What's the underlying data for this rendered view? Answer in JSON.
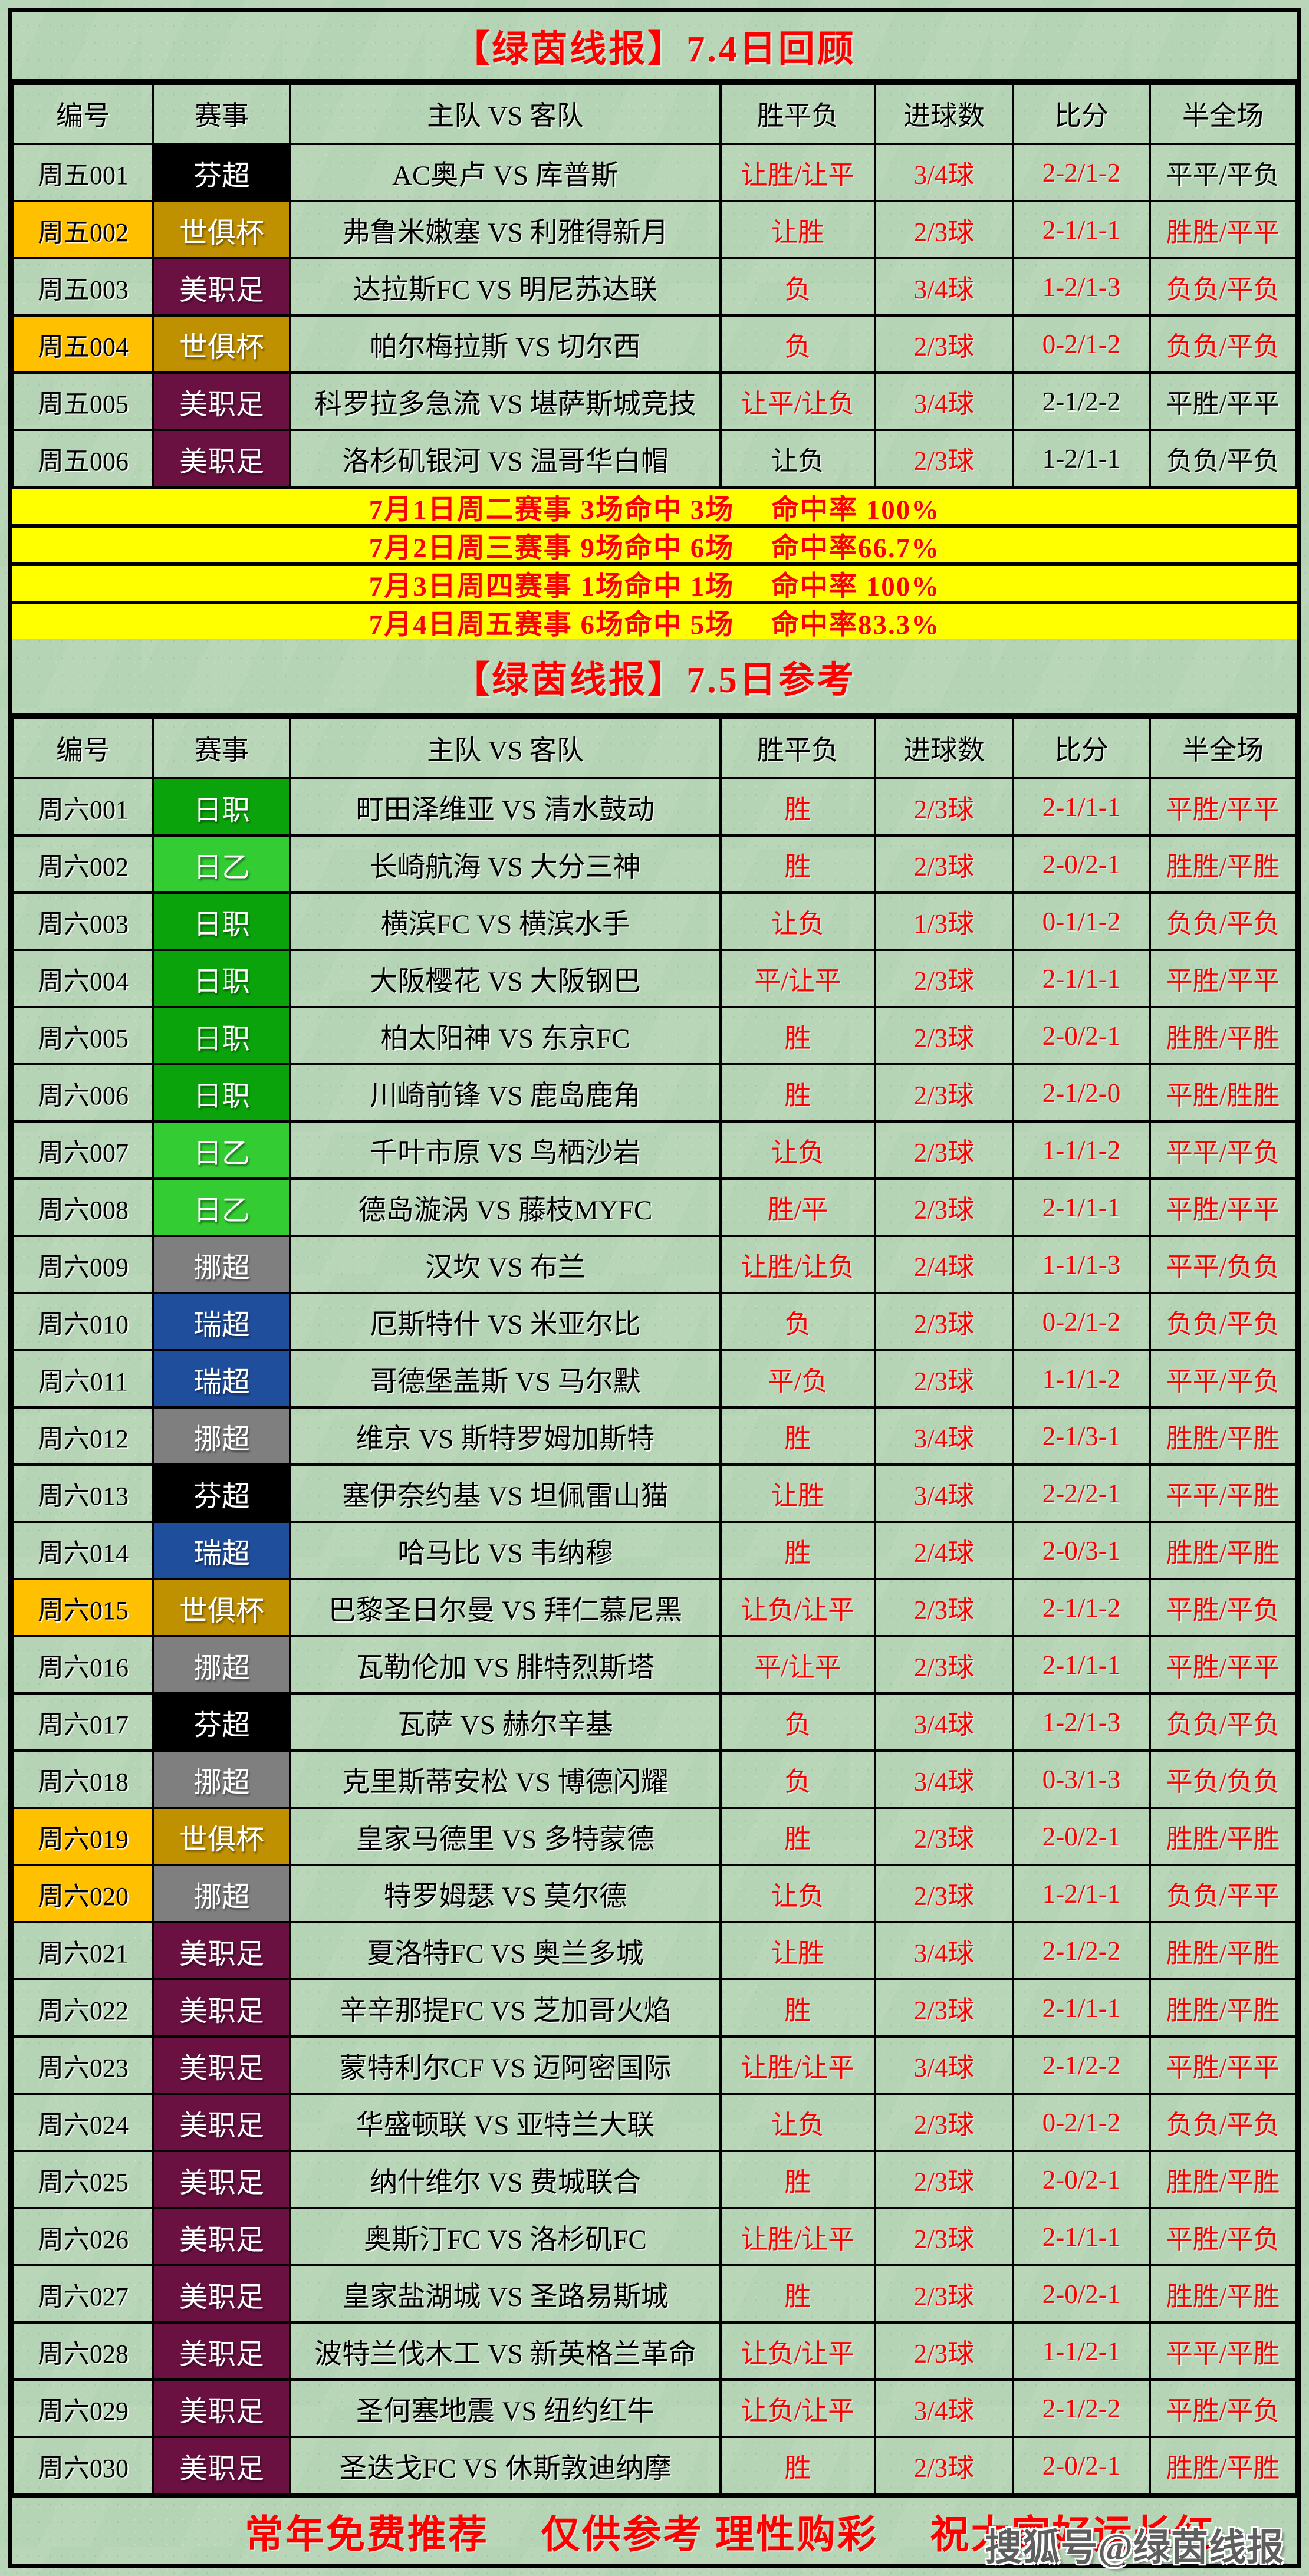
{
  "palette": {
    "page_bg": "#B5D3B5",
    "accent_red": "#FF0000",
    "stat_band_bg": "#FFFF00",
    "highlight_id_bg": "#FFC000",
    "leagues": {
      "芬超": "#000000",
      "世俱杯": "#BF9000",
      "美职足": "#6B1142",
      "日职": "#0BA30B",
      "日乙": "#33CC33",
      "挪超": "#7F7F7F",
      "瑞超": "#1F4E9C"
    }
  },
  "columns": [
    "编号",
    "赛事",
    "主队 VS 客队",
    "胜平负",
    "进球数",
    "比分",
    "半全场"
  ],
  "review": {
    "title": "【绿茵线报】7.4日回顾",
    "rows": [
      {
        "id": "周五001",
        "league": "芬超",
        "match": "AC奥卢 VS 库普斯",
        "spf": "让胜/让平",
        "goals": "3/4球",
        "score": "2-2/1-2",
        "half": "平平/平负",
        "black": [
          "half"
        ]
      },
      {
        "id": "周五002",
        "league": "世俱杯",
        "match": "弗鲁米嫩塞 VS 利雅得新月",
        "spf": "让胜",
        "goals": "2/3球",
        "score": "2-1/1-1",
        "half": "胜胜/平平",
        "highlight": true
      },
      {
        "id": "周五003",
        "league": "美职足",
        "match": "达拉斯FC VS 明尼苏达联",
        "spf": "负",
        "goals": "3/4球",
        "score": "1-2/1-3",
        "half": "负负/平负"
      },
      {
        "id": "周五004",
        "league": "世俱杯",
        "match": "帕尔梅拉斯 VS 切尔西",
        "spf": "负",
        "goals": "2/3球",
        "score": "0-2/1-2",
        "half": "负负/平负",
        "highlight": true
      },
      {
        "id": "周五005",
        "league": "美职足",
        "match": "科罗拉多急流 VS 堪萨斯城竞技",
        "spf": "让平/让负",
        "goals": "3/4球",
        "score": "2-1/2-2",
        "half": "平胜/平平",
        "black": [
          "score",
          "half"
        ]
      },
      {
        "id": "周五006",
        "league": "美职足",
        "match": "洛杉矶银河 VS 温哥华白帽",
        "spf": "让负",
        "goals": "2/3球",
        "score": "1-2/1-1",
        "half": "负负/平负",
        "black": [
          "spf",
          "score",
          "half"
        ]
      }
    ]
  },
  "stats": [
    "7月1日周二赛事 3场命中 3场　 命中率 100%",
    "7月2日周三赛事 9场命中 6场　 命中率66.7%",
    "7月3日周四赛事 1场命中 1场　 命中率 100%",
    "7月4日周五赛事 6场命中 5场　 命中率83.3%"
  ],
  "reference": {
    "title": "【绿茵线报】7.5日参考",
    "rows": [
      {
        "id": "周六001",
        "league": "日职",
        "match": "町田泽维亚 VS 清水鼓动",
        "spf": "胜",
        "goals": "2/3球",
        "score": "2-1/1-1",
        "half": "平胜/平平"
      },
      {
        "id": "周六002",
        "league": "日乙",
        "match": "长崎航海 VS 大分三神",
        "spf": "胜",
        "goals": "2/3球",
        "score": "2-0/2-1",
        "half": "胜胜/平胜"
      },
      {
        "id": "周六003",
        "league": "日职",
        "match": "横滨FC VS 横滨水手",
        "spf": "让负",
        "goals": "1/3球",
        "score": "0-1/1-2",
        "half": "负负/平负"
      },
      {
        "id": "周六004",
        "league": "日职",
        "match": "大阪樱花 VS 大阪钢巴",
        "spf": "平/让平",
        "goals": "2/3球",
        "score": "2-1/1-1",
        "half": "平胜/平平"
      },
      {
        "id": "周六005",
        "league": "日职",
        "match": "柏太阳神 VS 东京FC",
        "spf": "胜",
        "goals": "2/3球",
        "score": "2-0/2-1",
        "half": "胜胜/平胜"
      },
      {
        "id": "周六006",
        "league": "日职",
        "match": "川崎前锋 VS 鹿岛鹿角",
        "spf": "胜",
        "goals": "2/3球",
        "score": "2-1/2-0",
        "half": "平胜/胜胜"
      },
      {
        "id": "周六007",
        "league": "日乙",
        "match": "千叶市原 VS 鸟栖沙岩",
        "spf": "让负",
        "goals": "2/3球",
        "score": "1-1/1-2",
        "half": "平平/平负"
      },
      {
        "id": "周六008",
        "league": "日乙",
        "match": "德岛漩涡 VS 藤枝MYFC",
        "spf": "胜/平",
        "goals": "2/3球",
        "score": "2-1/1-1",
        "half": "平胜/平平"
      },
      {
        "id": "周六009",
        "league": "挪超",
        "match": "汉坎 VS 布兰",
        "spf": "让胜/让负",
        "goals": "2/4球",
        "score": "1-1/1-3",
        "half": "平平/负负"
      },
      {
        "id": "周六010",
        "league": "瑞超",
        "match": "厄斯特什 VS 米亚尔比",
        "spf": "负",
        "goals": "2/3球",
        "score": "0-2/1-2",
        "half": "负负/平负"
      },
      {
        "id": "周六011",
        "league": "瑞超",
        "match": "哥德堡盖斯 VS 马尔默",
        "spf": "平/负",
        "goals": "2/3球",
        "score": "1-1/1-2",
        "half": "平平/平负"
      },
      {
        "id": "周六012",
        "league": "挪超",
        "match": "维京 VS 斯特罗姆加斯特",
        "spf": "胜",
        "goals": "3/4球",
        "score": "2-1/3-1",
        "half": "胜胜/平胜"
      },
      {
        "id": "周六013",
        "league": "芬超",
        "match": "塞伊奈约基 VS 坦佩雷山猫",
        "spf": "让胜",
        "goals": "3/4球",
        "score": "2-2/2-1",
        "half": "平平/平胜"
      },
      {
        "id": "周六014",
        "league": "瑞超",
        "match": "哈马比 VS 韦纳穆",
        "spf": "胜",
        "goals": "2/4球",
        "score": "2-0/3-1",
        "half": "胜胜/平胜"
      },
      {
        "id": "周六015",
        "league": "世俱杯",
        "match": "巴黎圣日尔曼 VS 拜仁慕尼黑",
        "spf": "让负/让平",
        "goals": "2/3球",
        "score": "2-1/1-2",
        "half": "平胜/平负",
        "highlight": true
      },
      {
        "id": "周六016",
        "league": "挪超",
        "match": "瓦勒伦加 VS 腓特烈斯塔",
        "spf": "平/让平",
        "goals": "2/3球",
        "score": "2-1/1-1",
        "half": "平胜/平平"
      },
      {
        "id": "周六017",
        "league": "芬超",
        "match": "瓦萨 VS 赫尔辛基",
        "spf": "负",
        "goals": "3/4球",
        "score": "1-2/1-3",
        "half": "负负/平负"
      },
      {
        "id": "周六018",
        "league": "挪超",
        "match": "克里斯蒂安松 VS 博德闪耀",
        "spf": "负",
        "goals": "3/4球",
        "score": "0-3/1-3",
        "half": "平负/负负"
      },
      {
        "id": "周六019",
        "league": "世俱杯",
        "match": "皇家马德里 VS 多特蒙德",
        "spf": "胜",
        "goals": "2/3球",
        "score": "2-0/2-1",
        "half": "胜胜/平胜",
        "highlight": true
      },
      {
        "id": "周六020",
        "league": "挪超",
        "match": "特罗姆瑟 VS 莫尔德",
        "spf": "让负",
        "goals": "2/3球",
        "score": "1-2/1-1",
        "half": "负负/平平",
        "highlight": true
      },
      {
        "id": "周六021",
        "league": "美职足",
        "match": "夏洛特FC VS 奥兰多城",
        "spf": "让胜",
        "goals": "3/4球",
        "score": "2-1/2-2",
        "half": "胜胜/平胜"
      },
      {
        "id": "周六022",
        "league": "美职足",
        "match": "辛辛那提FC VS 芝加哥火焰",
        "spf": "胜",
        "goals": "2/3球",
        "score": "2-1/1-1",
        "half": "胜胜/平胜"
      },
      {
        "id": "周六023",
        "league": "美职足",
        "match": "蒙特利尔CF VS 迈阿密国际",
        "spf": "让胜/让平",
        "goals": "3/4球",
        "score": "2-1/2-2",
        "half": "平胜/平平"
      },
      {
        "id": "周六024",
        "league": "美职足",
        "match": "华盛顿联 VS 亚特兰大联",
        "spf": "让负",
        "goals": "2/3球",
        "score": "0-2/1-2",
        "half": "负负/平负"
      },
      {
        "id": "周六025",
        "league": "美职足",
        "match": "纳什维尔 VS 费城联合",
        "spf": "胜",
        "goals": "2/3球",
        "score": "2-0/2-1",
        "half": "胜胜/平胜"
      },
      {
        "id": "周六026",
        "league": "美职足",
        "match": "奥斯汀FC VS 洛杉矶FC",
        "spf": "让胜/让平",
        "goals": "2/3球",
        "score": "2-1/1-1",
        "half": "平胜/平负"
      },
      {
        "id": "周六027",
        "league": "美职足",
        "match": "皇家盐湖城 VS 圣路易斯城",
        "spf": "胜",
        "goals": "2/3球",
        "score": "2-0/2-1",
        "half": "胜胜/平胜"
      },
      {
        "id": "周六028",
        "league": "美职足",
        "match": "波特兰伐木工 VS 新英格兰革命",
        "spf": "让负/让平",
        "goals": "2/3球",
        "score": "1-1/2-1",
        "half": "平平/平胜"
      },
      {
        "id": "周六029",
        "league": "美职足",
        "match": "圣何塞地震 VS 纽约红牛",
        "spf": "让负/让平",
        "goals": "3/4球",
        "score": "2-1/2-2",
        "half": "平胜/平负"
      },
      {
        "id": "周六030",
        "league": "美职足",
        "match": "圣迭戈FC VS 休斯敦迪纳摩",
        "spf": "胜",
        "goals": "2/3球",
        "score": "2-0/2-1",
        "half": "胜胜/平胜"
      }
    ]
  },
  "footer": {
    "text": "常年免费推荐　 仅供参考  理性购彩　 祝大家好运长红",
    "watermark": "搜狐号@绿茵线报"
  }
}
